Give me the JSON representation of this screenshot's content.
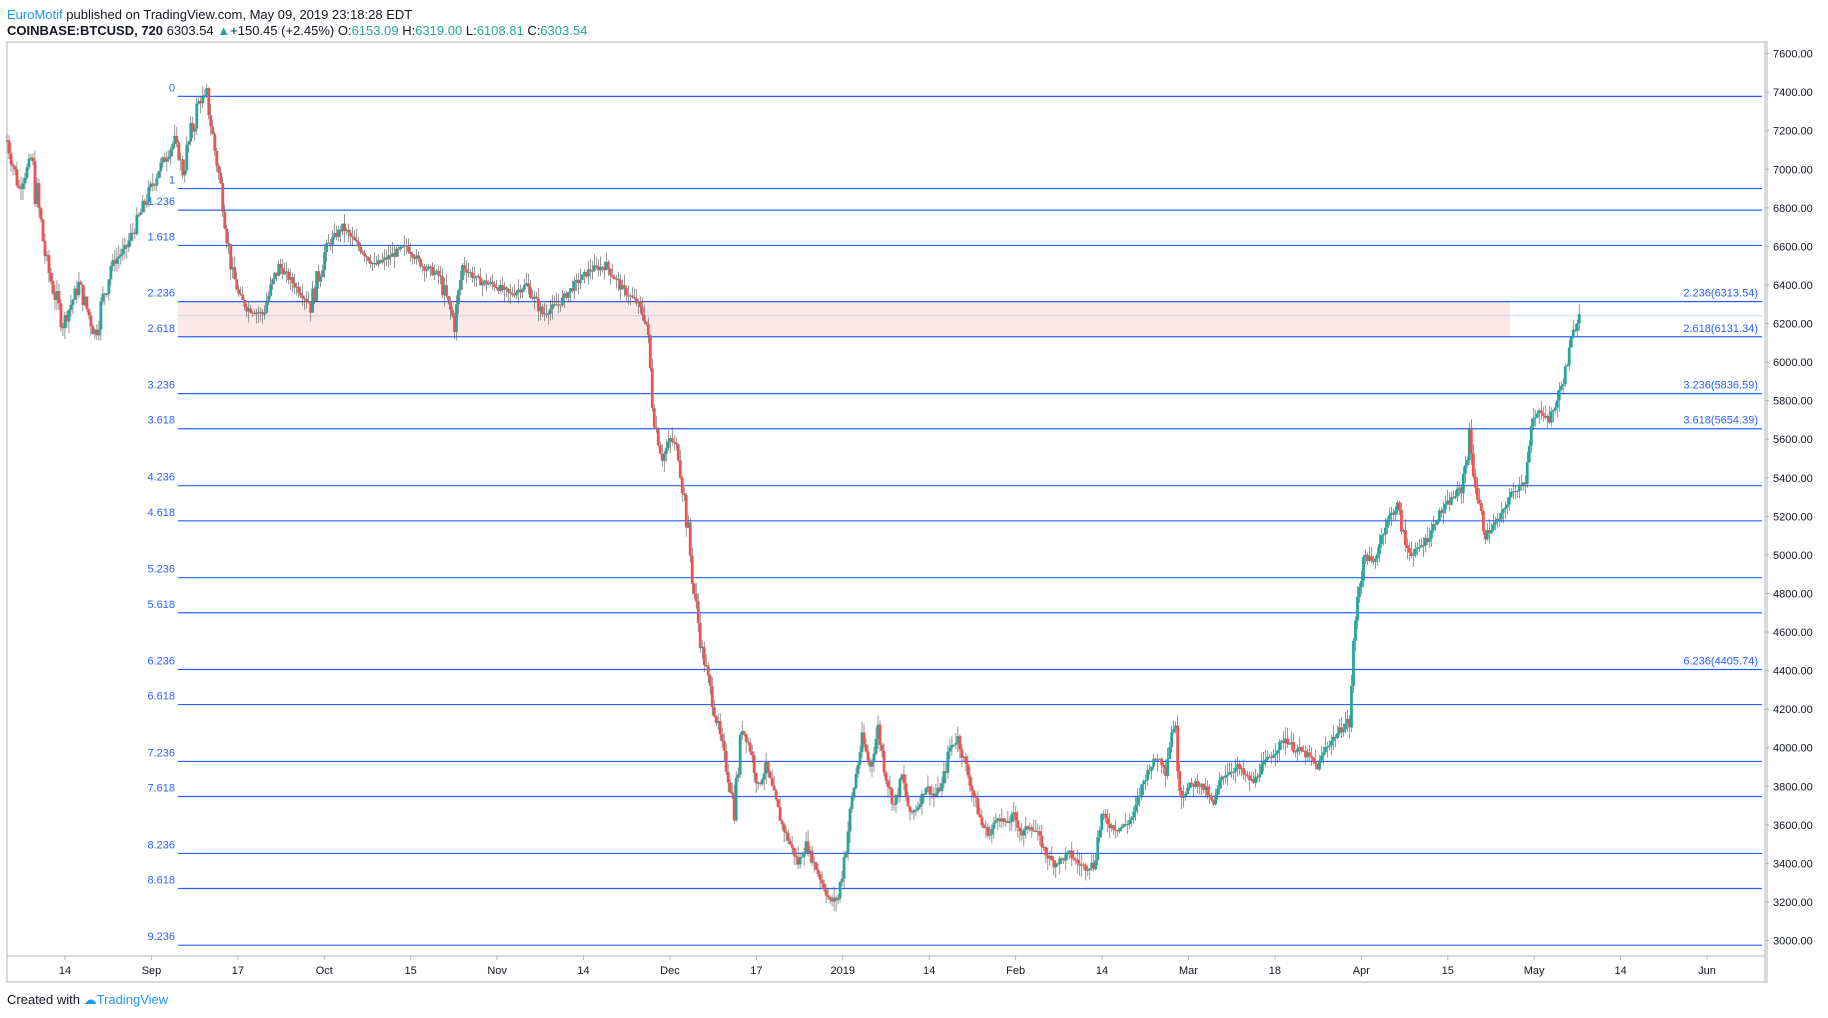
{
  "header": {
    "author": "EuroMotif",
    "published_text": "published on TradingView.com, May 09, 2019 23:18:28 EDT",
    "symbol": "COINBASE:BTCUSD, 720",
    "last": "6303.54",
    "change_arrow": "▲",
    "change": "+150.45 (+2.45%)",
    "o_label": "O:",
    "o_value": "6153.09",
    "h_label": "H:",
    "h_value": "6319.00",
    "l_label": "L:",
    "l_value": "6108.81",
    "c_label": "C:",
    "c_value": "6303.54"
  },
  "footer": {
    "created_with": "Created with",
    "brand": "TradingView"
  },
  "colors": {
    "up": "#26a69a",
    "down": "#ef5350",
    "fib_line": "#2962ff",
    "fib_band": "#fbe9e7"
  },
  "chart_data": {
    "type": "candlestick",
    "y_ticks": [
      "7600.00",
      "7400.00",
      "7200.00",
      "7000.00",
      "6800.00",
      "6600.00",
      "6400.00",
      "6200.00",
      "6000.00",
      "5800.00",
      "5600.00",
      "5400.00",
      "5200.00",
      "5000.00",
      "4800.00",
      "4600.00",
      "4400.00",
      "4200.00",
      "4000.00",
      "3800.00",
      "3600.00",
      "3400.00",
      "3200.00",
      "3000.00"
    ],
    "ylim": [
      2920,
      7660
    ],
    "x_ticks": [
      "14",
      "Sep",
      "17",
      "Oct",
      "15",
      "Nov",
      "14",
      "Dec",
      "17",
      "2019",
      "14",
      "Feb",
      "14",
      "Mar",
      "18",
      "Apr",
      "15",
      "May",
      "14",
      "Jun"
    ],
    "fib_levels": [
      {
        "label": "0",
        "value": 7378,
        "right_label": ""
      },
      {
        "label": "1",
        "value": 6900,
        "right_label": ""
      },
      {
        "label": "1.236",
        "value": 6788,
        "right_label": ""
      },
      {
        "label": "1.618",
        "value": 6605,
        "right_label": ""
      },
      {
        "label": "2.236",
        "value": 6313.54,
        "right_label": "2.236(6313.54)"
      },
      {
        "label": "",
        "value": 6240,
        "right_label": ""
      },
      {
        "label": "2.618",
        "value": 6131.34,
        "right_label": "2.618(6131.34)"
      },
      {
        "label": "3.236",
        "value": 5836.59,
        "right_label": "3.236(5836.59)"
      },
      {
        "label": "3.618",
        "value": 5654.39,
        "right_label": "3.618(5654.39)"
      },
      {
        "label": "4.236",
        "value": 5359,
        "right_label": ""
      },
      {
        "label": "4.618",
        "value": 5177,
        "right_label": ""
      },
      {
        "label": "5.236",
        "value": 4882,
        "right_label": ""
      },
      {
        "label": "5.618",
        "value": 4700,
        "right_label": ""
      },
      {
        "label": "6.236",
        "value": 4405.74,
        "right_label": "6.236(4405.74)"
      },
      {
        "label": "6.618",
        "value": 4224,
        "right_label": ""
      },
      {
        "label": "7.236",
        "value": 3929,
        "right_label": ""
      },
      {
        "label": "7.618",
        "value": 3747,
        "right_label": ""
      },
      {
        "label": "8.236",
        "value": 3452,
        "right_label": ""
      },
      {
        "label": "8.618",
        "value": 3270,
        "right_label": ""
      },
      {
        "label": "9.236",
        "value": 2976,
        "right_label": ""
      }
    ],
    "price_path": [
      [
        0,
        7150
      ],
      [
        3,
        6900
      ],
      [
        6,
        7050
      ],
      [
        10,
        6500
      ],
      [
        14,
        6200
      ],
      [
        18,
        6400
      ],
      [
        22,
        6150
      ],
      [
        26,
        6500
      ],
      [
        30,
        6600
      ],
      [
        34,
        6800
      ],
      [
        38,
        7000
      ],
      [
        42,
        7150
      ],
      [
        44,
        7000
      ],
      [
        48,
        7350
      ],
      [
        50,
        7378
      ],
      [
        52,
        7100
      ],
      [
        54,
        6850
      ],
      [
        56,
        6500
      ],
      [
        58,
        6350
      ],
      [
        60,
        6280
      ],
      [
        64,
        6250
      ],
      [
        68,
        6500
      ],
      [
        72,
        6400
      ],
      [
        76,
        6300
      ],
      [
        80,
        6600
      ],
      [
        84,
        6700
      ],
      [
        88,
        6600
      ],
      [
        92,
        6500
      ],
      [
        96,
        6550
      ],
      [
        100,
        6600
      ],
      [
        104,
        6500
      ],
      [
        108,
        6450
      ],
      [
        112,
        6200
      ],
      [
        114,
        6500
      ],
      [
        118,
        6420
      ],
      [
        122,
        6400
      ],
      [
        126,
        6350
      ],
      [
        130,
        6400
      ],
      [
        134,
        6250
      ],
      [
        138,
        6300
      ],
      [
        142,
        6400
      ],
      [
        146,
        6480
      ],
      [
        150,
        6500
      ],
      [
        154,
        6380
      ],
      [
        158,
        6300
      ],
      [
        160,
        6200
      ],
      [
        162,
        5700
      ],
      [
        164,
        5500
      ],
      [
        166,
        5600
      ],
      [
        168,
        5550
      ],
      [
        170,
        5200
      ],
      [
        172,
        4800
      ],
      [
        174,
        4500
      ],
      [
        176,
        4300
      ],
      [
        178,
        4100
      ],
      [
        180,
        3900
      ],
      [
        182,
        3700
      ],
      [
        184,
        4100
      ],
      [
        186,
        4000
      ],
      [
        188,
        3800
      ],
      [
        190,
        3900
      ],
      [
        192,
        3750
      ],
      [
        194,
        3600
      ],
      [
        196,
        3500
      ],
      [
        198,
        3400
      ],
      [
        200,
        3500
      ],
      [
        202,
        3400
      ],
      [
        204,
        3300
      ],
      [
        206,
        3200
      ],
      [
        208,
        3220
      ],
      [
        210,
        3500
      ],
      [
        212,
        3800
      ],
      [
        214,
        4050
      ],
      [
        216,
        3900
      ],
      [
        218,
        4100
      ],
      [
        220,
        3850
      ],
      [
        222,
        3700
      ],
      [
        224,
        3850
      ],
      [
        226,
        3650
      ],
      [
        228,
        3700
      ],
      [
        230,
        3800
      ],
      [
        232,
        3750
      ],
      [
        234,
        3800
      ],
      [
        236,
        4000
      ],
      [
        238,
        4050
      ],
      [
        240,
        3900
      ],
      [
        242,
        3750
      ],
      [
        244,
        3600
      ],
      [
        246,
        3550
      ],
      [
        248,
        3650
      ],
      [
        250,
        3600
      ],
      [
        252,
        3650
      ],
      [
        254,
        3550
      ],
      [
        256,
        3600
      ],
      [
        258,
        3550
      ],
      [
        260,
        3450
      ],
      [
        262,
        3400
      ],
      [
        264,
        3420
      ],
      [
        266,
        3450
      ],
      [
        268,
        3400
      ],
      [
        270,
        3380
      ],
      [
        272,
        3400
      ],
      [
        274,
        3650
      ],
      [
        276,
        3600
      ],
      [
        278,
        3580
      ],
      [
        280,
        3600
      ],
      [
        282,
        3650
      ],
      [
        284,
        3800
      ],
      [
        286,
        3900
      ],
      [
        288,
        3950
      ],
      [
        290,
        3900
      ],
      [
        292,
        4150
      ],
      [
        294,
        3750
      ],
      [
        296,
        3800
      ],
      [
        298,
        3820
      ],
      [
        300,
        3780
      ],
      [
        302,
        3700
      ],
      [
        304,
        3850
      ],
      [
        306,
        3880
      ],
      [
        308,
        3900
      ],
      [
        310,
        3850
      ],
      [
        312,
        3820
      ],
      [
        314,
        3900
      ],
      [
        316,
        3950
      ],
      [
        318,
        4000
      ],
      [
        320,
        4050
      ],
      [
        322,
        4000
      ],
      [
        324,
        3980
      ],
      [
        326,
        3950
      ],
      [
        328,
        3900
      ],
      [
        330,
        4000
      ],
      [
        332,
        4050
      ],
      [
        334,
        4100
      ],
      [
        336,
        4150
      ],
      [
        338,
        4800
      ],
      [
        340,
        5000
      ],
      [
        342,
        4950
      ],
      [
        344,
        5100
      ],
      [
        346,
        5200
      ],
      [
        348,
        5250
      ],
      [
        350,
        5050
      ],
      [
        352,
        5000
      ],
      [
        354,
        5050
      ],
      [
        356,
        5100
      ],
      [
        358,
        5200
      ],
      [
        360,
        5250
      ],
      [
        362,
        5300
      ],
      [
        364,
        5350
      ],
      [
        366,
        5600
      ],
      [
        368,
        5300
      ],
      [
        370,
        5100
      ],
      [
        372,
        5150
      ],
      [
        374,
        5200
      ],
      [
        376,
        5300
      ],
      [
        378,
        5350
      ],
      [
        380,
        5400
      ],
      [
        382,
        5700
      ],
      [
        384,
        5750
      ],
      [
        386,
        5700
      ],
      [
        388,
        5800
      ],
      [
        390,
        5950
      ],
      [
        392,
        6150
      ],
      [
        394,
        6303
      ]
    ],
    "x_range": [
      0,
      440
    ]
  }
}
